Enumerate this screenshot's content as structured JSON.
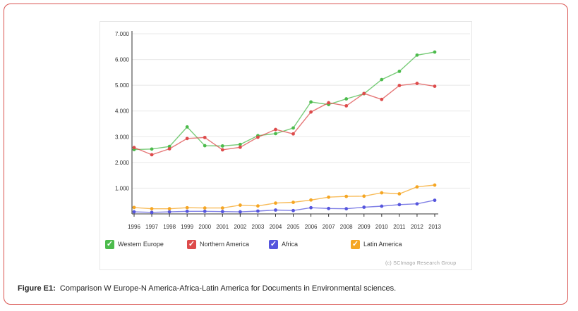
{
  "caption": {
    "label": "Figure E1:",
    "text": "Comparison W Europe-N America-Africa-Latin America for Documents in Environmental sciences."
  },
  "credit": "(c) SCImago Research Group",
  "colors": {
    "western_europe": "#4cbb4c",
    "northern_america": "#dd4b4b",
    "africa": "#5555dd",
    "latin_america": "#f5a623"
  },
  "chart_data": {
    "type": "line",
    "x": [
      "1996",
      "1997",
      "1998",
      "1999",
      "2000",
      "2001",
      "2002",
      "2003",
      "2004",
      "2005",
      "2006",
      "2007",
      "2008",
      "2009",
      "2010",
      "2011",
      "2012",
      "2013"
    ],
    "ylim": [
      0,
      7000
    ],
    "yticks": [
      "1.000",
      "2.000",
      "3.000",
      "4.000",
      "5.000",
      "6.000",
      "7.000"
    ],
    "ytick_values": [
      1000,
      2000,
      3000,
      4000,
      5000,
      6000,
      7000
    ],
    "grid": true,
    "legend_position": "bottom",
    "series": [
      {
        "name": "Western Europe",
        "color": "#4cbb4c",
        "values": [
          2500,
          2520,
          2620,
          3380,
          2650,
          2640,
          2700,
          3040,
          3120,
          3340,
          4350,
          4250,
          4470,
          4670,
          5220,
          5540,
          6170,
          6290
        ]
      },
      {
        "name": "Northern America",
        "color": "#dd4b4b",
        "values": [
          2580,
          2300,
          2530,
          2930,
          2970,
          2490,
          2590,
          2980,
          3280,
          3110,
          3960,
          4320,
          4200,
          4680,
          4450,
          4990,
          5070,
          4960
        ]
      },
      {
        "name": "Africa",
        "color": "#5555dd",
        "values": [
          80,
          60,
          80,
          100,
          100,
          90,
          80,
          110,
          150,
          130,
          240,
          210,
          200,
          260,
          300,
          360,
          390,
          530
        ]
      },
      {
        "name": "Latin America",
        "color": "#f5a623",
        "values": [
          250,
          200,
          200,
          240,
          230,
          230,
          340,
          310,
          420,
          450,
          540,
          650,
          680,
          690,
          820,
          780,
          1050,
          1120
        ]
      }
    ]
  }
}
